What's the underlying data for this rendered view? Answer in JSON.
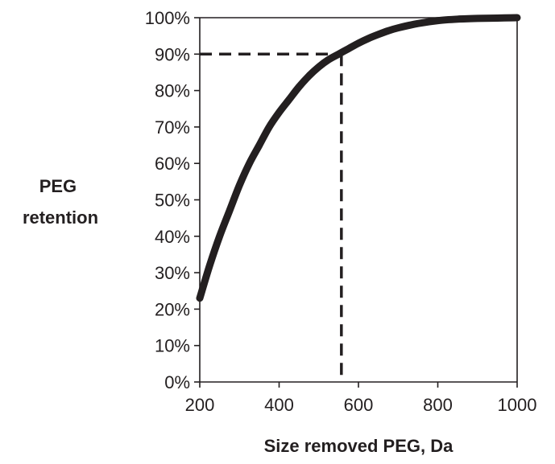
{
  "chart_data": {
    "type": "line",
    "title": "",
    "xlabel": "Size removed PEG, Da",
    "ylabel_lines": [
      "PEG",
      "retention"
    ],
    "xlim": [
      200,
      1000
    ],
    "ylim": [
      0,
      100
    ],
    "x_ticks": [
      200,
      400,
      600,
      800,
      1000
    ],
    "x_tick_labels": [
      "200",
      "400",
      "600",
      "800",
      "1000"
    ],
    "y_ticks": [
      0,
      10,
      20,
      30,
      40,
      50,
      60,
      70,
      80,
      90,
      100
    ],
    "y_tick_labels": [
      "0%",
      "10%",
      "20%",
      "30%",
      "40%",
      "50%",
      "60%",
      "70%",
      "80%",
      "90%",
      "100%"
    ],
    "grid": false,
    "series": [
      {
        "x": [
          200,
          225,
          250,
          275,
          300,
          325,
          350,
          375,
          400,
          425,
          450,
          475,
          500,
          525,
          550,
          575,
          600,
          625,
          650,
          675,
          700,
          750,
          800,
          850,
          900,
          950,
          1000
        ],
        "y": [
          23,
          32,
          40,
          47,
          54,
          60,
          65,
          70,
          74,
          77.5,
          81,
          84,
          86.5,
          88.5,
          90,
          91.5,
          93,
          94.3,
          95.4,
          96.4,
          97.2,
          98.4,
          99.2,
          99.6,
          99.8,
          99.9,
          100
        ]
      }
    ],
    "annotations": [
      {
        "type": "dashed-reference",
        "x": 557,
        "y": 90
      }
    ],
    "colors": {
      "line": "#231f20",
      "axis": "#231f20",
      "text": "#231f20"
    }
  }
}
